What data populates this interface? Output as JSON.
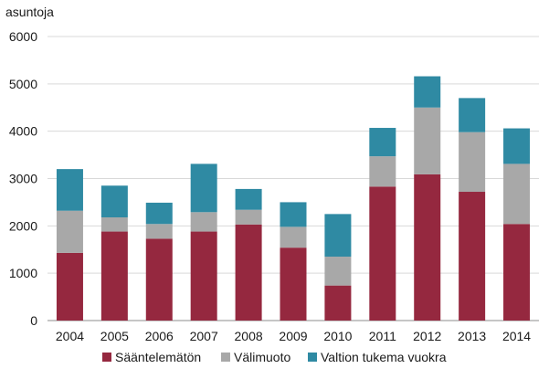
{
  "chart_data": {
    "type": "bar",
    "stacked": true,
    "title": "",
    "xlabel": "",
    "ylabel": "asuntoja",
    "ylim": [
      0,
      6000
    ],
    "yticks": [
      0,
      1000,
      2000,
      3000,
      4000,
      5000,
      6000
    ],
    "grid": "horizontal",
    "legend_position": "bottom",
    "categories": [
      "2004",
      "2005",
      "2006",
      "2007",
      "2008",
      "2009",
      "2010",
      "2011",
      "2012",
      "2013",
      "2014"
    ],
    "series": [
      {
        "name": "Sääntelemätön",
        "color": "#95283f",
        "values": [
          1430,
          1880,
          1730,
          1880,
          2030,
          1540,
          740,
          2830,
          3090,
          2720,
          2040
        ]
      },
      {
        "name": "Välimuoto",
        "color": "#a8a8a8",
        "values": [
          890,
          300,
          310,
          410,
          310,
          440,
          610,
          640,
          1410,
          1260,
          1270
        ]
      },
      {
        "name": "Valtion tukema vuokra",
        "color": "#2f8aa3",
        "values": [
          880,
          670,
          450,
          1020,
          440,
          520,
          900,
          600,
          660,
          720,
          750
        ]
      }
    ]
  }
}
